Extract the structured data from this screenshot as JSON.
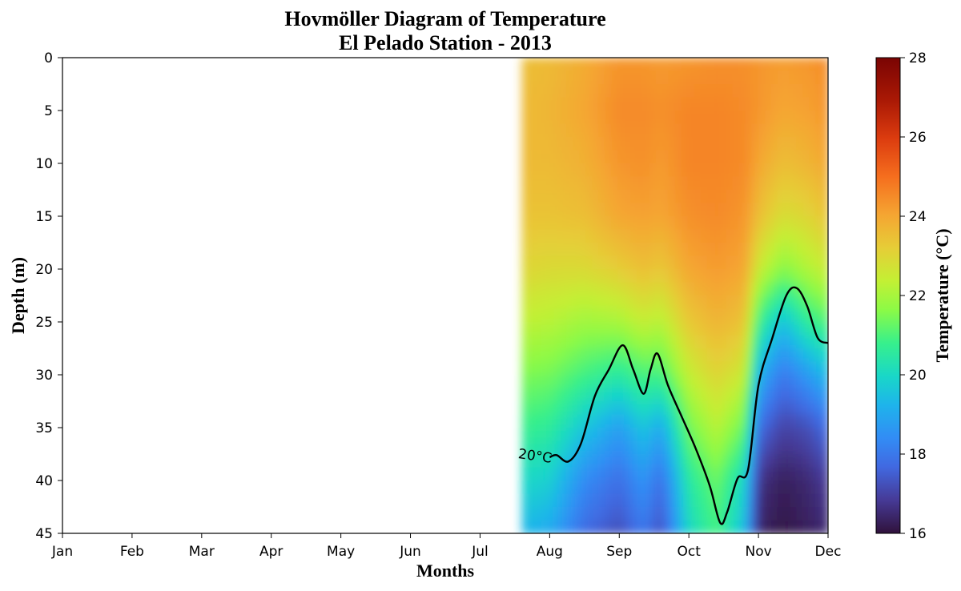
{
  "chart_data": {
    "type": "heatmap",
    "title": "Hovmöller Diagram of Temperature",
    "subtitle": "El Pelado Station - 2013",
    "xlabel": "Months",
    "ylabel": "Depth (m)",
    "x_tick_labels": [
      "Jan",
      "Feb",
      "Mar",
      "Apr",
      "May",
      "Jun",
      "Jul",
      "Aug",
      "Sep",
      "Oct",
      "Nov",
      "Dec"
    ],
    "x_range_months": [
      1,
      12
    ],
    "y_ticks": [
      0,
      5,
      10,
      15,
      20,
      25,
      30,
      35,
      40,
      45
    ],
    "ylim": [
      45,
      0
    ],
    "y_inverted": true,
    "colorbar": {
      "label": "Temperature (°C)",
      "ticks": [
        16,
        18,
        20,
        22,
        24,
        26,
        28
      ],
      "range": [
        16,
        28
      ],
      "colormap": "turbo"
    },
    "data_start_month": 7.6,
    "depth_profiles": [
      {
        "month": 7.6,
        "surface_temp": 23.5,
        "temps": [
          23.5,
          23.6,
          23.6,
          23.4,
          23.0,
          22.3,
          21.5,
          20.8,
          20.0,
          19.3
        ]
      },
      {
        "month": 8.0,
        "surface_temp": 23.6,
        "temps": [
          23.6,
          23.7,
          23.6,
          23.4,
          22.9,
          22.2,
          21.4,
          20.6,
          19.8,
          19.0
        ]
      },
      {
        "month": 8.5,
        "surface_temp": 23.9,
        "temps": [
          23.9,
          24.0,
          23.8,
          23.5,
          22.9,
          21.9,
          20.9,
          19.6,
          18.4,
          17.7
        ]
      },
      {
        "month": 9.0,
        "surface_temp": 24.3,
        "temps": [
          24.3,
          24.5,
          24.3,
          24.0,
          23.2,
          22.0,
          20.5,
          18.8,
          17.8,
          17.2
        ]
      },
      {
        "month": 9.35,
        "surface_temp": 24.3,
        "temps": [
          24.3,
          24.5,
          24.4,
          24.1,
          23.5,
          22.4,
          21.0,
          19.6,
          18.6,
          18.0
        ]
      },
      {
        "month": 9.6,
        "surface_temp": 24.2,
        "temps": [
          24.2,
          24.4,
          24.2,
          24.0,
          23.3,
          22.2,
          20.9,
          19.0,
          17.8,
          17.2
        ]
      },
      {
        "month": 10.0,
        "surface_temp": 24.3,
        "temps": [
          24.3,
          24.6,
          24.6,
          24.4,
          24.0,
          23.3,
          22.4,
          21.4,
          20.5,
          20.0
        ]
      },
      {
        "month": 10.4,
        "surface_temp": 24.4,
        "temps": [
          24.4,
          24.6,
          24.6,
          24.5,
          24.2,
          23.7,
          23.0,
          22.2,
          21.3,
          20.9
        ]
      },
      {
        "month": 10.8,
        "surface_temp": 24.4,
        "temps": [
          24.4,
          24.5,
          24.5,
          24.3,
          24.0,
          23.4,
          22.5,
          21.3,
          20.0,
          19.4
        ]
      },
      {
        "month": 11.0,
        "surface_temp": 24.3,
        "temps": [
          24.3,
          24.3,
          24.0,
          23.5,
          22.5,
          20.8,
          19.2,
          17.8,
          16.7,
          16.4
        ]
      },
      {
        "month": 11.35,
        "surface_temp": 24.2,
        "temps": [
          24.2,
          24.0,
          23.5,
          22.8,
          21.6,
          19.5,
          18.0,
          17.0,
          16.3,
          16.1
        ]
      },
      {
        "month": 11.7,
        "surface_temp": 24.3,
        "temps": [
          24.3,
          24.1,
          23.7,
          23.0,
          22.1,
          20.6,
          18.7,
          17.2,
          16.5,
          16.3
        ]
      },
      {
        "month": 12.0,
        "surface_temp": 24.5,
        "temps": [
          24.5,
          24.3,
          24.0,
          23.4,
          22.5,
          21.1,
          19.4,
          17.8,
          16.9,
          16.5
        ]
      }
    ],
    "profile_depths": [
      0,
      5,
      10,
      15,
      20,
      25,
      30,
      35,
      40,
      45
    ],
    "contour": {
      "level": 20,
      "label": "20°C",
      "points": [
        [
          8.0,
          37.8
        ],
        [
          8.1,
          37.6
        ],
        [
          8.27,
          38.2
        ],
        [
          8.45,
          36.5
        ],
        [
          8.65,
          32.0
        ],
        [
          8.85,
          29.5
        ],
        [
          9.05,
          27.2
        ],
        [
          9.2,
          29.5
        ],
        [
          9.35,
          31.8
        ],
        [
          9.45,
          29.5
        ],
        [
          9.55,
          28.0
        ],
        [
          9.7,
          31.0
        ],
        [
          9.9,
          34.0
        ],
        [
          10.1,
          37.0
        ],
        [
          10.3,
          40.5
        ],
        [
          10.45,
          44.0
        ],
        [
          10.55,
          43.0
        ],
        [
          10.7,
          39.8
        ],
        [
          10.85,
          39.0
        ],
        [
          11.0,
          31.0
        ],
        [
          11.2,
          26.5
        ],
        [
          11.4,
          22.5
        ],
        [
          11.55,
          21.8
        ],
        [
          11.7,
          23.5
        ],
        [
          11.85,
          26.5
        ],
        [
          12.0,
          27.0
        ]
      ]
    }
  }
}
